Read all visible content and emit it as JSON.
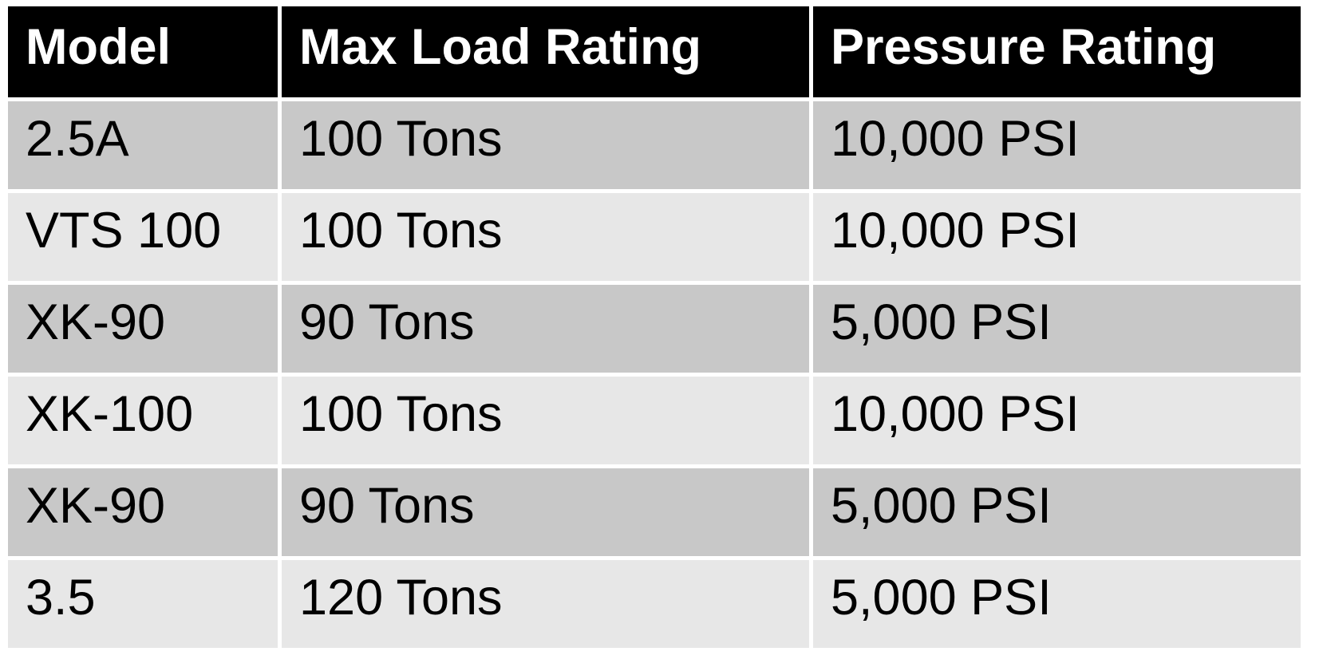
{
  "table": {
    "columns": [
      "Model",
      "Max Load Rating",
      "Pressure Rating"
    ],
    "rows": [
      [
        "2.5A",
        "100 Tons",
        "10,000 PSI"
      ],
      [
        "VTS 100",
        "100 Tons",
        "10,000 PSI"
      ],
      [
        "XK-90",
        "90 Tons",
        "5,000 PSI"
      ],
      [
        "XK-100",
        "100 Tons",
        "10,000 PSI"
      ],
      [
        "XK-90",
        "90 Tons",
        "5,000 PSI"
      ],
      [
        "3.5",
        "120 Tons",
        "5,000 PSI"
      ]
    ]
  },
  "colors": {
    "header_bg": "#000000",
    "header_text": "#ffffff",
    "body_text": "#000000",
    "row_band_dark": "#c8c8c8",
    "row_band_light": "#e7e7e7",
    "gridline": "#ffffff"
  }
}
